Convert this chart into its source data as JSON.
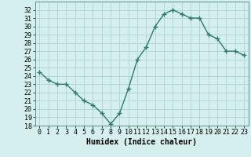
{
  "x": [
    0,
    1,
    2,
    3,
    4,
    5,
    6,
    7,
    8,
    9,
    10,
    11,
    12,
    13,
    14,
    15,
    16,
    17,
    18,
    19,
    20,
    21,
    22,
    23
  ],
  "y": [
    24.5,
    23.5,
    23.0,
    23.0,
    22.0,
    21.0,
    20.5,
    19.5,
    18.2,
    19.5,
    22.5,
    26.0,
    27.5,
    30.0,
    31.5,
    32.0,
    31.5,
    31.0,
    31.0,
    29.0,
    28.5,
    27.0,
    27.0,
    26.5
  ],
  "line_color": "#2d7b6e",
  "marker": "+",
  "marker_size": 4,
  "bg_color": "#d5eeee",
  "grid_color": "#aed4d4",
  "xlabel": "Humidex (Indice chaleur)",
  "ylim": [
    18,
    33
  ],
  "xlim": [
    -0.5,
    23.5
  ],
  "yticks": [
    18,
    19,
    20,
    21,
    22,
    23,
    24,
    25,
    26,
    27,
    28,
    29,
    30,
    31,
    32
  ],
  "xticks": [
    0,
    1,
    2,
    3,
    4,
    5,
    6,
    7,
    8,
    9,
    10,
    11,
    12,
    13,
    14,
    15,
    16,
    17,
    18,
    19,
    20,
    21,
    22,
    23
  ],
  "xlabel_fontsize": 7,
  "tick_fontsize": 6,
  "line_width": 1.0,
  "marker_edge_width": 1.0
}
